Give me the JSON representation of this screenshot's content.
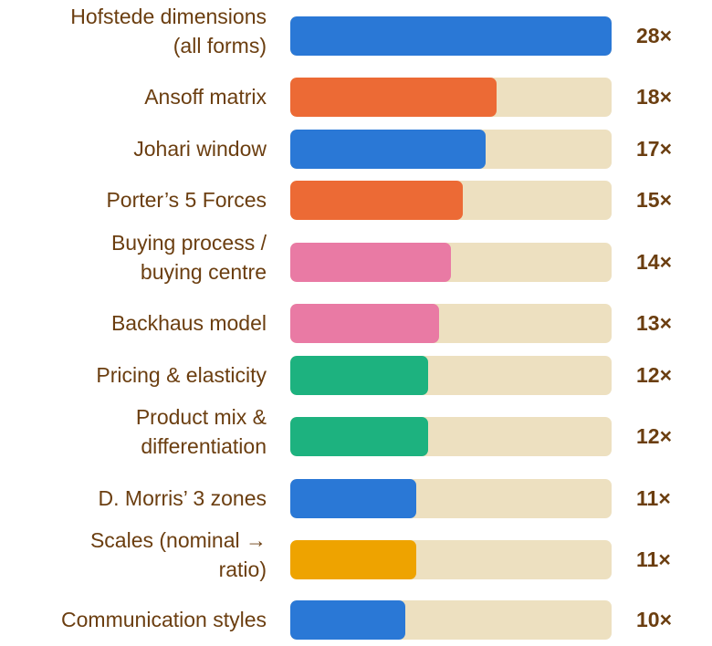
{
  "chart_data": {
    "type": "bar",
    "orientation": "horizontal",
    "xlim": [
      0,
      28
    ],
    "grid": false,
    "categories": [
      "Hofstede dimensions\n(all forms)",
      "Ansoff matrix",
      "Johari window",
      "Porter’s 5 Forces",
      "Buying process /\nbuying centre",
      "Backhaus model",
      "Pricing & elasticity",
      "Product mix &\ndifferentiation",
      "D. Morris’ 3 zones",
      "Scales (nominal →\nratio)",
      "Communication styles"
    ],
    "values": [
      28,
      18,
      17,
      15,
      14,
      13,
      12,
      12,
      11,
      11,
      10
    ],
    "value_labels": [
      "28×",
      "18×",
      "17×",
      "15×",
      "14×",
      "13×",
      "12×",
      "12×",
      "11×",
      "11×",
      "10×"
    ],
    "bar_colors": [
      "#2a78d6",
      "#ec6a35",
      "#2a78d6",
      "#ec6a35",
      "#e97aa4",
      "#e97aa4",
      "#1db27f",
      "#1db27f",
      "#2a78d6",
      "#eea300",
      "#2a78d6"
    ],
    "track_color": "#ede0c0",
    "text_color": "#6b3e10"
  }
}
